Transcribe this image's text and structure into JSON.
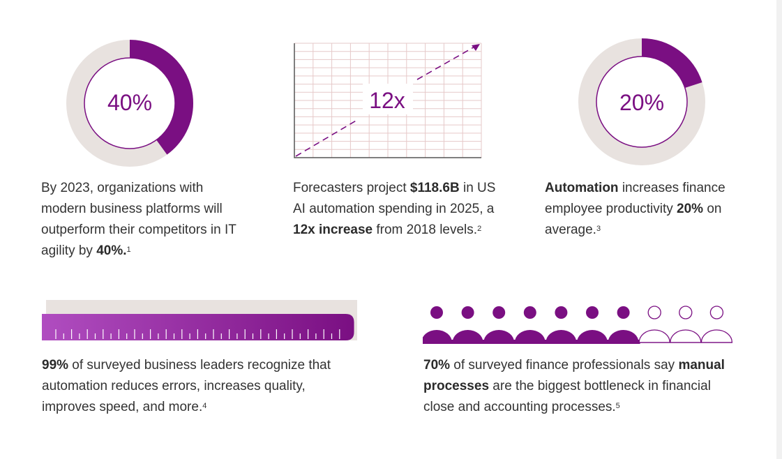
{
  "stats": {
    "agility": {
      "value_label": "40%",
      "percent": 40,
      "text_pre": "By 2023, organizations with modern business platforms will outperform their competitors in IT agility by ",
      "text_bold": "40%.",
      "footnote": "1"
    },
    "spending": {
      "value_label": "12x",
      "text_1": "Forecasters project ",
      "bold_1": "$118.6B",
      "text_2": " in US AI automation spending in 2025, a ",
      "bold_2": "12x increase",
      "text_3": " from 2018 levels.",
      "footnote": "2"
    },
    "productivity": {
      "value_label": "20%",
      "percent": 20,
      "bold_1": "Automation",
      "text_1": " increases finance employee productivity ",
      "bold_2": "20%",
      "text_2": " on average.",
      "footnote": "3"
    },
    "leaders": {
      "percent": 99,
      "bold_1": "99%",
      "text_1": " of surveyed business leaders recognize that automation reduces errors, increases quality, improves speed, and more.",
      "footnote": "4"
    },
    "finance_pros": {
      "filled_people": 7,
      "total_people": 10,
      "bold_1": "70%",
      "text_1": " of surveyed finance professionals say ",
      "bold_2": "manual processes",
      "text_2": " are the biggest bottleneck in financial close and accounting processes.",
      "footnote": "5"
    }
  },
  "colors": {
    "purple": "#7a0f82",
    "purple_light": "#b04dc0",
    "gray": "#e8e2df",
    "text": "#333333"
  }
}
